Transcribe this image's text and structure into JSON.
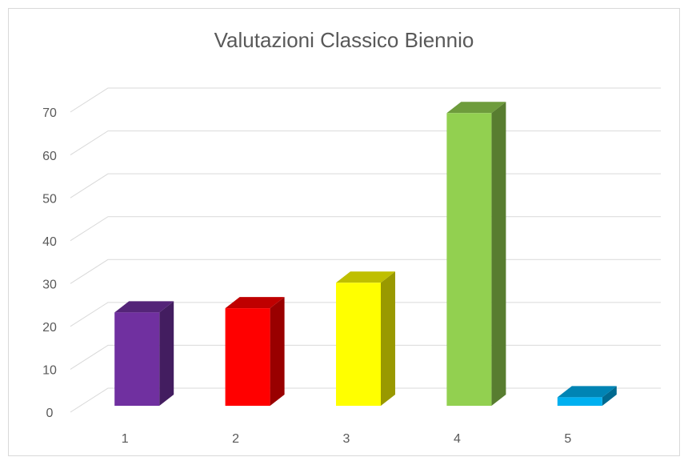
{
  "chart_data": {
    "type": "bar3d",
    "title": "Valutazioni Classico Biennio",
    "categories": [
      "1",
      "2",
      "3",
      "4",
      "5"
    ],
    "values": [
      22,
      23,
      29,
      69,
      2
    ],
    "colors": [
      "#7030a0",
      "#ff0000",
      "#ffff00",
      "#92d050",
      "#00b0f0"
    ],
    "ylim": [
      0,
      70
    ],
    "yticks": [
      0,
      10,
      20,
      30,
      40,
      50,
      60,
      70
    ],
    "grid": true
  }
}
